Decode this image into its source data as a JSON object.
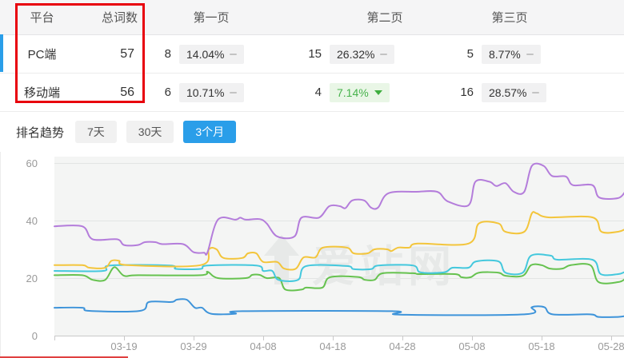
{
  "table": {
    "headers": [
      "平台",
      "总词数",
      "第一页",
      "第二页",
      "第三页"
    ],
    "rows": [
      {
        "platform": "PC端",
        "total": "57",
        "pages": [
          {
            "num": "8",
            "pct": "14.04%",
            "trend": "flat"
          },
          {
            "num": "15",
            "pct": "26.32%",
            "trend": "flat"
          },
          {
            "num": "5",
            "pct": "8.77%",
            "trend": "flat"
          }
        ]
      },
      {
        "platform": "移动端",
        "total": "56",
        "pages": [
          {
            "num": "6",
            "pct": "10.71%",
            "trend": "flat"
          },
          {
            "num": "4",
            "pct": "7.14%",
            "trend": "down"
          },
          {
            "num": "16",
            "pct": "28.57%",
            "trend": "flat"
          }
        ]
      }
    ]
  },
  "trend": {
    "label": "排名趋势",
    "tabs": [
      {
        "label": "7天",
        "active": false
      },
      {
        "label": "30天",
        "active": false
      },
      {
        "label": "3个月",
        "active": true
      }
    ]
  },
  "colors": {
    "accent_blue": "#2a9ee9",
    "annotation_red": "#e8000d",
    "badge_gray_bg": "#f1f1f2",
    "badge_green_bg": "#e9f6e6",
    "badge_green_text": "#47b34c"
  },
  "chart_data": {
    "type": "line",
    "title": "",
    "watermark": "爱站网",
    "y_axis": {
      "ticks": [
        0,
        20,
        40,
        60
      ],
      "range": [
        0,
        64
      ],
      "grid": true
    },
    "x_axis": {
      "labels": [
        {
          "label": "03-19",
          "day": 10
        },
        {
          "label": "03-29",
          "day": 20
        },
        {
          "label": "04-08",
          "day": 30
        },
        {
          "label": "04-18",
          "day": 40
        },
        {
          "label": "04-28",
          "day": 50
        },
        {
          "label": "05-08",
          "day": 60
        },
        {
          "label": "05-18",
          "day": 70
        },
        {
          "label": "05-28",
          "day": 80
        }
      ]
    },
    "legend": "none",
    "series": [
      {
        "name": "blue-line",
        "color": "#3e94da",
        "points": [
          [
            0,
            9.7
          ],
          [
            4,
            9.7
          ],
          [
            5,
            8.6
          ],
          [
            12.3,
            8.6
          ],
          [
            13.6,
            11.7
          ],
          [
            16.8,
            11.7
          ],
          [
            17.6,
            12.5
          ],
          [
            19,
            12.5
          ],
          [
            20.2,
            9.7
          ],
          [
            21.2,
            9.7
          ],
          [
            22.5,
            7.6
          ],
          [
            26,
            7.6
          ],
          [
            27,
            8.5
          ],
          [
            48.5,
            8.5
          ],
          [
            49.6,
            7.3
          ],
          [
            67.5,
            7.4
          ],
          [
            68.6,
            9.9
          ],
          [
            70.4,
            9.9
          ],
          [
            71.6,
            7.4
          ],
          [
            77,
            7.4
          ],
          [
            78.2,
            6.5
          ],
          [
            81,
            6.5
          ],
          [
            82,
            6.8
          ]
        ]
      },
      {
        "name": "green-line",
        "color": "#66c24f",
        "points": [
          [
            0,
            21
          ],
          [
            4,
            21
          ],
          [
            5.5,
            19.4
          ],
          [
            7.3,
            19.4
          ],
          [
            8.6,
            23.8
          ],
          [
            10,
            20.8
          ],
          [
            12,
            21
          ],
          [
            21,
            21
          ],
          [
            22,
            22.2
          ],
          [
            23.5,
            20
          ],
          [
            27.5,
            20
          ],
          [
            28.4,
            21.1
          ],
          [
            29.5,
            21.1
          ],
          [
            30.5,
            20
          ],
          [
            32.3,
            20
          ],
          [
            33.2,
            16
          ],
          [
            35.5,
            16
          ],
          [
            36.2,
            16.7
          ],
          [
            38.5,
            16.7
          ],
          [
            39.6,
            20.3
          ],
          [
            43.6,
            20.4
          ],
          [
            44.6,
            19.4
          ],
          [
            46,
            19.4
          ],
          [
            47.2,
            21.7
          ],
          [
            51.5,
            21.7
          ],
          [
            52.5,
            21.4
          ],
          [
            57.5,
            21.4
          ],
          [
            58.5,
            20.3
          ],
          [
            59.8,
            20.3
          ],
          [
            61,
            21.9
          ],
          [
            63.8,
            21.9
          ],
          [
            64.8,
            20.8
          ],
          [
            67.3,
            20.8
          ],
          [
            68.5,
            24.5
          ],
          [
            70,
            24.5
          ],
          [
            71.2,
            23.3
          ],
          [
            73,
            23.3
          ],
          [
            74.2,
            24.5
          ],
          [
            77,
            24.5
          ],
          [
            78.2,
            18.6
          ],
          [
            81,
            18.6
          ],
          [
            82,
            19.7
          ]
        ]
      },
      {
        "name": "cyan-line",
        "color": "#44c8dd",
        "points": [
          [
            0,
            22.5
          ],
          [
            7,
            22.5
          ],
          [
            8,
            24.4
          ],
          [
            16.6,
            24.4
          ],
          [
            17.5,
            23.2
          ],
          [
            21,
            23.2
          ],
          [
            22,
            24.4
          ],
          [
            29,
            24.4
          ],
          [
            30,
            22.5
          ],
          [
            31.3,
            22.5
          ],
          [
            32.2,
            19.4
          ],
          [
            35,
            19.4
          ],
          [
            36.2,
            24.2
          ],
          [
            42,
            24.2
          ],
          [
            43,
            23.1
          ],
          [
            45.5,
            23.1
          ],
          [
            46.6,
            24.4
          ],
          [
            51.5,
            24.4
          ],
          [
            52.6,
            22
          ],
          [
            56,
            22
          ],
          [
            57.2,
            23.6
          ],
          [
            59.5,
            23.6
          ],
          [
            60.6,
            25.8
          ],
          [
            63.8,
            25.8
          ],
          [
            64.8,
            21.9
          ],
          [
            67.3,
            21.9
          ],
          [
            68.5,
            27.8
          ],
          [
            71.3,
            27.8
          ],
          [
            72.3,
            26.4
          ],
          [
            77.3,
            26.4
          ],
          [
            78.5,
            21.4
          ],
          [
            81,
            21.4
          ],
          [
            82,
            22.2
          ]
        ]
      },
      {
        "name": "yellow-line",
        "color": "#f3c53b",
        "points": [
          [
            0,
            24.5
          ],
          [
            4,
            24.5
          ],
          [
            5,
            23.6
          ],
          [
            7.3,
            23.6
          ],
          [
            8.2,
            26
          ],
          [
            9.3,
            26
          ],
          [
            10.5,
            24.5
          ],
          [
            21,
            24.5
          ],
          [
            22.2,
            30
          ],
          [
            23.3,
            30
          ],
          [
            24.3,
            27
          ],
          [
            27,
            27
          ],
          [
            27.8,
            28.6
          ],
          [
            29,
            28.6
          ],
          [
            30,
            25.6
          ],
          [
            32,
            25.6
          ],
          [
            33,
            23.3
          ],
          [
            34.7,
            23.3
          ],
          [
            35.8,
            27.2
          ],
          [
            37.5,
            27.2
          ],
          [
            38.6,
            30.6
          ],
          [
            42,
            30.6
          ],
          [
            43,
            28.6
          ],
          [
            45,
            28.6
          ],
          [
            46,
            30
          ],
          [
            47.8,
            30
          ],
          [
            48.4,
            29.4
          ],
          [
            49.4,
            30.6
          ],
          [
            51,
            30.6
          ],
          [
            52.2,
            32
          ],
          [
            59.5,
            32
          ],
          [
            61,
            39
          ],
          [
            63.8,
            39
          ],
          [
            64.8,
            36.1
          ],
          [
            67.5,
            36.1
          ],
          [
            68.6,
            42.5
          ],
          [
            69.3,
            42.5
          ],
          [
            71,
            41.1
          ],
          [
            77.3,
            41.1
          ],
          [
            78.6,
            36.1
          ],
          [
            81,
            36.1
          ],
          [
            82,
            37
          ]
        ]
      },
      {
        "name": "purple-line",
        "color": "#b47ddb",
        "points": [
          [
            0,
            38
          ],
          [
            4,
            38
          ],
          [
            5.5,
            33.5
          ],
          [
            9,
            33.5
          ],
          [
            10,
            31.5
          ],
          [
            12,
            31.5
          ],
          [
            13,
            32.5
          ],
          [
            14.5,
            32.5
          ],
          [
            15.5,
            31.8
          ],
          [
            18.5,
            31.8
          ],
          [
            20,
            29
          ],
          [
            21.5,
            28.8
          ],
          [
            22,
            29
          ],
          [
            23.5,
            40.3
          ],
          [
            26,
            40.3
          ],
          [
            26.7,
            41
          ],
          [
            27.5,
            40.3
          ],
          [
            29.5,
            40.5
          ],
          [
            30.5,
            39
          ],
          [
            32,
            34.5
          ],
          [
            34.5,
            34.5
          ],
          [
            35.5,
            41
          ],
          [
            38,
            41
          ],
          [
            39.5,
            45
          ],
          [
            41,
            45
          ],
          [
            41.8,
            44.3
          ],
          [
            42.8,
            47
          ],
          [
            44.5,
            47
          ],
          [
            45.5,
            44.5
          ],
          [
            46.5,
            44.5
          ],
          [
            48,
            49.5
          ],
          [
            52,
            50
          ],
          [
            55,
            50
          ],
          [
            56.5,
            46.7
          ],
          [
            59.5,
            45.3
          ],
          [
            60.5,
            53.5
          ],
          [
            62.5,
            53.5
          ],
          [
            63.5,
            52
          ],
          [
            64.8,
            53
          ],
          [
            66,
            50
          ],
          [
            67.5,
            50
          ],
          [
            68.6,
            59
          ],
          [
            70.3,
            59
          ],
          [
            71.5,
            55.5
          ],
          [
            73.5,
            55.3
          ],
          [
            74.5,
            52.3
          ],
          [
            77.3,
            52.3
          ],
          [
            78.3,
            48
          ],
          [
            81,
            47.8
          ],
          [
            82,
            50
          ]
        ]
      }
    ]
  }
}
